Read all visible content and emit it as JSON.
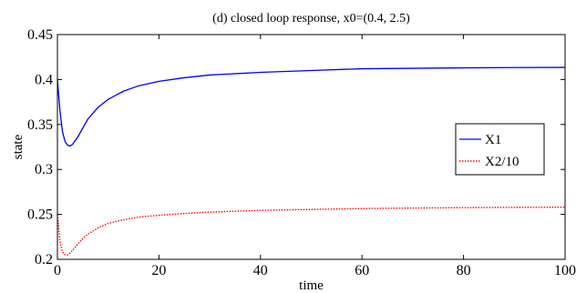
{
  "chart_data": {
    "type": "line",
    "title": "(d) closed loop response, x0=(0.4, 2.5)",
    "xlabel": "time",
    "ylabel": "state",
    "xlim": [
      0,
      100
    ],
    "ylim": [
      0.2,
      0.45
    ],
    "x_ticks": [
      0,
      20,
      40,
      60,
      80,
      100
    ],
    "y_ticks": [
      0.2,
      0.25,
      0.3,
      0.35,
      0.4,
      0.45
    ],
    "x_tick_labels": [
      "0",
      "20",
      "40",
      "60",
      "80",
      "100"
    ],
    "y_tick_labels": [
      "0.2",
      "0.25",
      "0.3",
      "0.35",
      "0.4",
      "0.45"
    ],
    "grid": false,
    "legend_position": "right",
    "series": [
      {
        "name": "X1",
        "color": "#0000ff",
        "style": "solid",
        "x": [
          0,
          0.5,
          1,
          1.5,
          2,
          2.5,
          3,
          4,
          5,
          6,
          8,
          10,
          13,
          16,
          20,
          25,
          30,
          40,
          50,
          60,
          70,
          80,
          90,
          100
        ],
        "y": [
          0.4,
          0.365,
          0.342,
          0.331,
          0.327,
          0.326,
          0.328,
          0.336,
          0.346,
          0.356,
          0.369,
          0.378,
          0.387,
          0.393,
          0.398,
          0.402,
          0.405,
          0.408,
          0.41,
          0.412,
          0.4125,
          0.413,
          0.4133,
          0.4135
        ]
      },
      {
        "name": "X2/10",
        "color": "#ff0000",
        "style": "dotted",
        "x": [
          0,
          0.5,
          1,
          1.5,
          2,
          2.5,
          3,
          4,
          5,
          6,
          8,
          10,
          13,
          16,
          20,
          25,
          30,
          40,
          50,
          60,
          70,
          80,
          90,
          100
        ],
        "y": [
          0.25,
          0.22,
          0.208,
          0.205,
          0.205,
          0.207,
          0.21,
          0.217,
          0.223,
          0.228,
          0.235,
          0.24,
          0.244,
          0.247,
          0.249,
          0.251,
          0.2525,
          0.2545,
          0.2555,
          0.2565,
          0.257,
          0.2575,
          0.2578,
          0.258
        ]
      }
    ]
  }
}
